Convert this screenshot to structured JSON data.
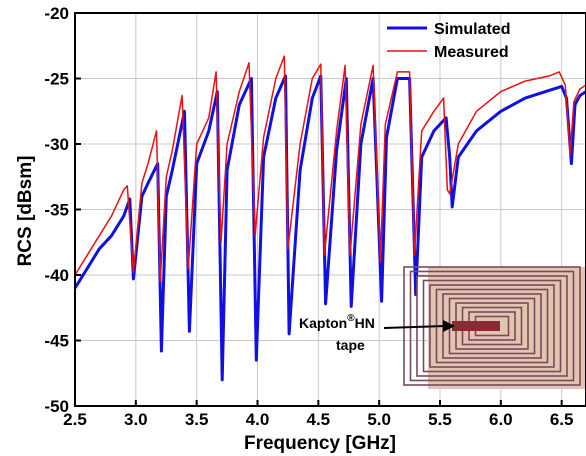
{
  "chart_data": {
    "type": "line",
    "title": "",
    "xlabel": "Frequency [GHz]",
    "ylabel": "RCS [dBsm]",
    "xlim": [
      2.5,
      6.7
    ],
    "ylim": [
      -50,
      -20
    ],
    "xticks": [
      "2.5",
      "3.0",
      "3.5",
      "4.0",
      "4.5",
      "5.0",
      "5.5",
      "6.0",
      "6.5"
    ],
    "xtick_values": [
      2.5,
      3.0,
      3.5,
      4.0,
      4.5,
      5.0,
      5.5,
      6.0,
      6.5
    ],
    "yticks": [
      "-20",
      "-25",
      "-30",
      "-35",
      "-40",
      "-45",
      "-50"
    ],
    "ytick_values": [
      -20,
      -25,
      -30,
      -35,
      -40,
      -45,
      -50
    ],
    "grid": true,
    "legend_position": "top-right",
    "colors": {
      "simulated": "#1010e0",
      "measured": "#e81010"
    },
    "series": [
      {
        "name": "Simulated",
        "x": [
          2.5,
          2.6,
          2.7,
          2.8,
          2.9,
          2.95,
          2.98,
          3.05,
          3.1,
          3.18,
          3.21,
          3.25,
          3.3,
          3.4,
          3.44,
          3.5,
          3.6,
          3.67,
          3.71,
          3.75,
          3.85,
          3.95,
          3.99,
          4.05,
          4.15,
          4.23,
          4.26,
          4.35,
          4.45,
          4.52,
          4.56,
          4.65,
          4.73,
          4.77,
          4.85,
          4.95,
          5.02,
          5.06,
          5.15,
          5.25,
          5.3,
          5.35,
          5.45,
          5.55,
          5.58,
          5.6,
          5.65,
          5.8,
          6.0,
          6.2,
          6.4,
          6.5,
          6.54,
          6.58,
          6.61,
          6.65,
          6.7
        ],
        "y": [
          -41,
          -39.5,
          -38,
          -37,
          -35.5,
          -34.2,
          -40.3,
          -34,
          -33,
          -31.5,
          -45.8,
          -34,
          -32,
          -27.5,
          -44.3,
          -31.5,
          -29,
          -26,
          -48,
          -32,
          -27,
          -25,
          -46.5,
          -31,
          -26.5,
          -24.8,
          -44.5,
          -32,
          -26.5,
          -24.8,
          -42.2,
          -30.5,
          -25,
          -42.4,
          -30,
          -25,
          -42,
          -29.5,
          -25,
          -25,
          -41.5,
          -31,
          -29,
          -28,
          -31,
          -34.8,
          -31,
          -29,
          -27.5,
          -26.5,
          -25.9,
          -25.6,
          -26.5,
          -31.5,
          -27,
          -26.3,
          -26
        ]
      },
      {
        "name": "Measured",
        "x": [
          2.5,
          2.6,
          2.7,
          2.8,
          2.9,
          2.93,
          2.98,
          3.05,
          3.1,
          3.17,
          3.2,
          3.25,
          3.3,
          3.38,
          3.43,
          3.5,
          3.6,
          3.66,
          3.7,
          3.75,
          3.85,
          3.93,
          3.98,
          4.05,
          4.15,
          4.22,
          4.25,
          4.35,
          4.45,
          4.52,
          4.55,
          4.65,
          4.72,
          4.76,
          4.85,
          4.95,
          5.01,
          5.05,
          5.15,
          5.25,
          5.29,
          5.35,
          5.45,
          5.53,
          5.56,
          5.58,
          5.65,
          5.8,
          6.0,
          6.2,
          6.4,
          6.48,
          6.53,
          6.57,
          6.6,
          6.65,
          6.7
        ],
        "y": [
          -40,
          -38.5,
          -37,
          -35.5,
          -33.5,
          -33.2,
          -39.8,
          -33,
          -31.5,
          -29,
          -40.5,
          -32.5,
          -30.5,
          -26.3,
          -39.5,
          -30,
          -28,
          -24.5,
          -37.5,
          -30,
          -26,
          -23.8,
          -37,
          -29.5,
          -25,
          -23.3,
          -38,
          -30,
          -25,
          -23.9,
          -38.5,
          -29,
          -24,
          -38.5,
          -28.5,
          -24,
          -39,
          -28.5,
          -24.5,
          -24.5,
          -38.5,
          -29,
          -27.5,
          -26.5,
          -33.5,
          -33.8,
          -30,
          -27.5,
          -26,
          -25.2,
          -24.8,
          -24.5,
          -25.5,
          -30.8,
          -26.8,
          -25.8,
          -25.5
        ]
      }
    ]
  },
  "legend": {
    "simulated_label": "Simulated",
    "measured_label": "Measured"
  },
  "annotation": {
    "line1_main": "Kapton",
    "line1_sup": "®",
    "line1_tail": "HN",
    "line2": "tape"
  }
}
